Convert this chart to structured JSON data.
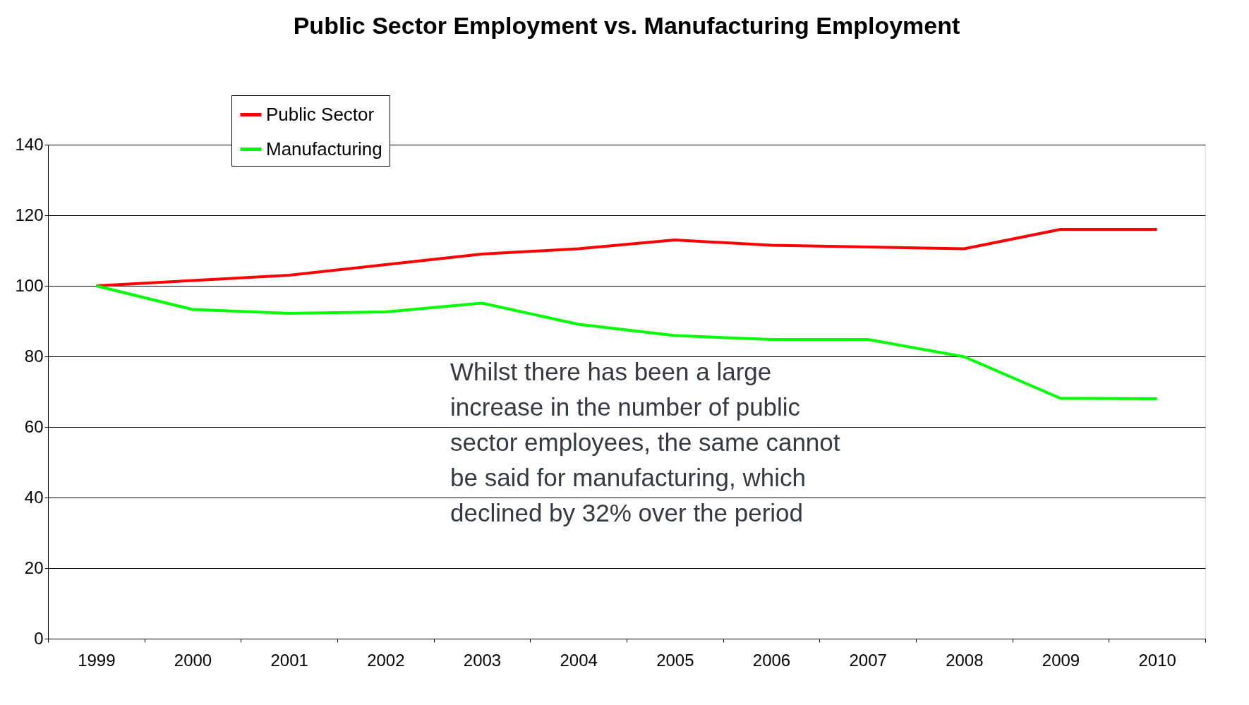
{
  "chart_data": {
    "type": "line",
    "title": "Public Sector Employment  vs. Manufacturing Employment",
    "categories": [
      "1999",
      "2000",
      "2001",
      "2002",
      "2003",
      "2004",
      "2005",
      "2006",
      "2007",
      "2008",
      "2009",
      "2010"
    ],
    "series": [
      {
        "name": "Public Sector",
        "color": "#ff0000",
        "values": [
          100,
          101.5,
          103,
          106,
          109,
          110.5,
          113,
          111.5,
          111,
          110.5,
          116,
          116
        ]
      },
      {
        "name": "Manufacturing",
        "color": "#00ff00",
        "values": [
          100,
          93.3,
          92.2,
          92.6,
          95.1,
          89.1,
          85.9,
          84.8,
          84.8,
          79.9,
          68.1,
          68
        ]
      }
    ],
    "ylim": [
      0,
      140
    ],
    "yticks": [
      0,
      20,
      40,
      60,
      80,
      100,
      120,
      140
    ],
    "grid": "y",
    "legend": "top left",
    "marker": "none",
    "line_style": "solid",
    "annotations": [
      "Whilst there has been a large increase in the number of public sector employees, the same cannot be said for manufacturing, which declined by 32% over the period"
    ]
  }
}
